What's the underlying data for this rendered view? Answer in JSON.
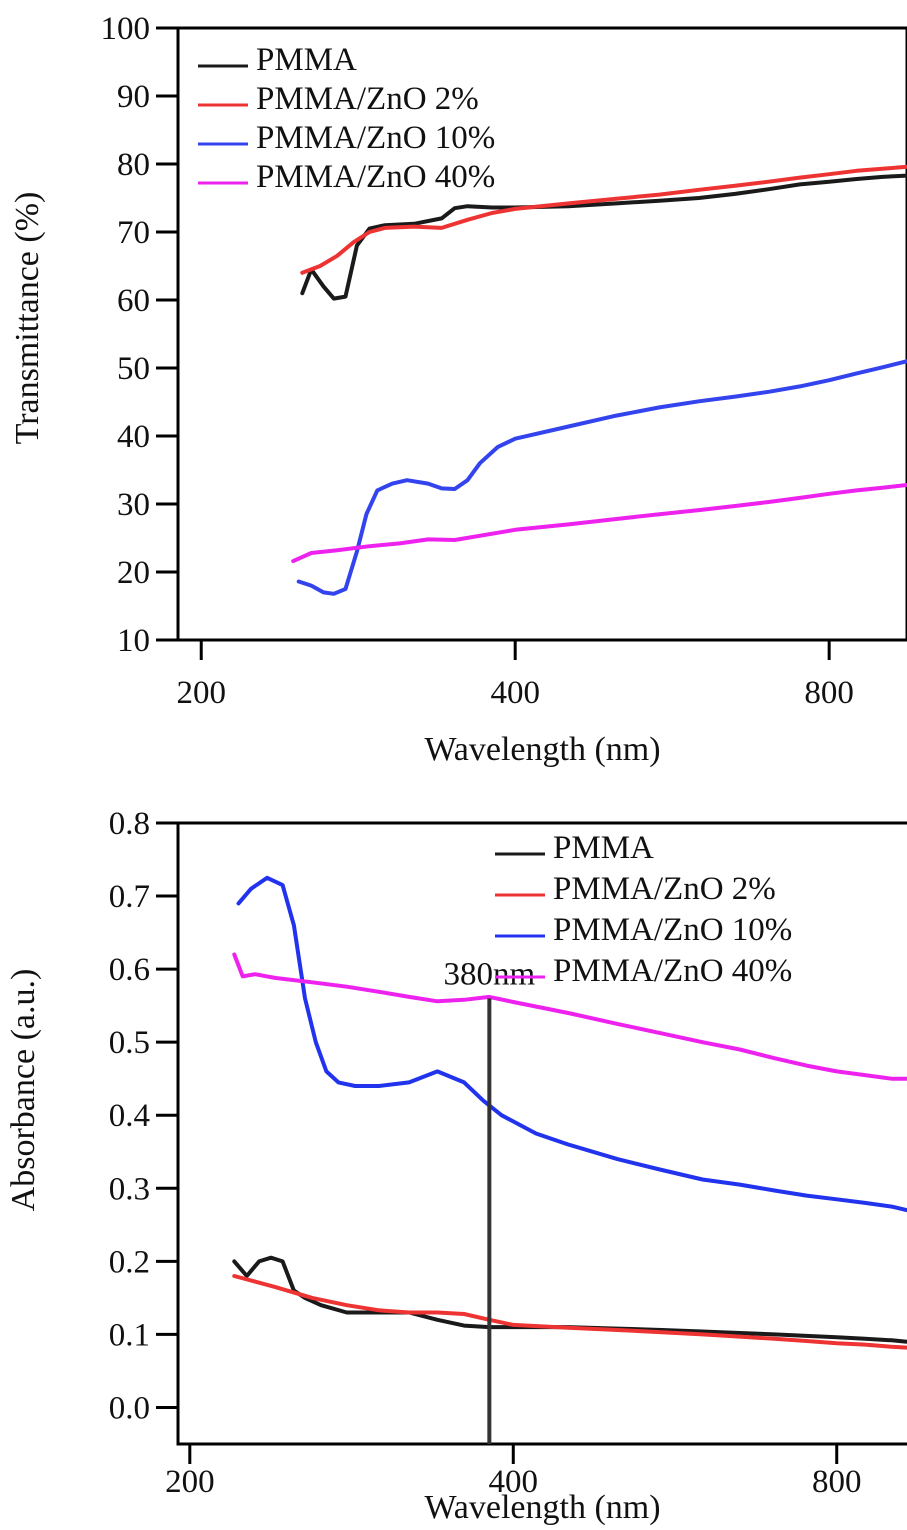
{
  "chart_data": [
    {
      "type": "line",
      "title": "",
      "xlabel": "Wavelength (nm)",
      "ylabel": "Transmittance (%)",
      "xscale": "log",
      "xlim": [
        190,
        950
      ],
      "ylim": [
        10,
        100
      ],
      "x_ticks": [
        200,
        400,
        800
      ],
      "y_ticks": [
        10,
        20,
        30,
        40,
        50,
        60,
        70,
        80,
        90,
        100
      ],
      "grid": false,
      "legend_position": "top-left",
      "series": [
        {
          "name": "PMMA",
          "color": "#1a1a1a",
          "x": [
            250,
            255,
            262,
            268,
            275,
            282,
            290,
            300,
            320,
            340,
            350,
            360,
            380,
            400,
            450,
            500,
            550,
            600,
            650,
            700,
            750,
            800,
            850,
            900,
            950
          ],
          "y": [
            61,
            64.5,
            62,
            60.2,
            60.5,
            68,
            70.5,
            71,
            71.2,
            72,
            73.5,
            73.8,
            73.6,
            73.6,
            73.8,
            74.2,
            74.6,
            75,
            75.6,
            76.3,
            77,
            77.4,
            77.8,
            78.1,
            78.3
          ]
        },
        {
          "name": "PMMA/ZnO 2%",
          "color": "#ee3333",
          "x": [
            250,
            260,
            270,
            280,
            290,
            300,
            320,
            340,
            360,
            380,
            400,
            450,
            500,
            550,
            600,
            650,
            700,
            750,
            800,
            850,
            900,
            950
          ],
          "y": [
            64,
            65,
            66.5,
            68.5,
            70,
            70.6,
            70.8,
            70.6,
            71.8,
            72.8,
            73.4,
            74.2,
            74.9,
            75.5,
            76.2,
            76.8,
            77.4,
            78,
            78.5,
            79,
            79.3,
            79.6
          ]
        },
        {
          "name": "PMMA/ZnO 10%",
          "color": "#3344ee",
          "x": [
            248,
            255,
            262,
            268,
            275,
            282,
            288,
            295,
            305,
            315,
            330,
            340,
            350,
            360,
            370,
            385,
            400,
            450,
            500,
            550,
            600,
            650,
            700,
            750,
            800,
            850,
            900,
            950
          ],
          "y": [
            18.6,
            18,
            17,
            16.8,
            17.5,
            23,
            28.5,
            32,
            33,
            33.5,
            33,
            32.3,
            32.2,
            33.5,
            36,
            38.4,
            39.6,
            41.4,
            43,
            44.2,
            45.1,
            45.8,
            46.5,
            47.3,
            48.2,
            49.2,
            50.1,
            51
          ]
        },
        {
          "name": "PMMA/ZnO 40%",
          "color": "#ee22ee",
          "x": [
            245,
            255,
            270,
            290,
            310,
            330,
            350,
            400,
            450,
            500,
            550,
            600,
            650,
            700,
            750,
            800,
            850,
            900,
            950
          ],
          "y": [
            21.6,
            22.8,
            23.2,
            23.8,
            24.2,
            24.8,
            24.7,
            26.2,
            27,
            27.8,
            28.5,
            29.1,
            29.7,
            30.3,
            30.9,
            31.5,
            32,
            32.4,
            32.8
          ]
        }
      ]
    },
    {
      "type": "line",
      "title": "",
      "xlabel": "Wavelength (nm)",
      "ylabel": "Absorbance (a.u.)",
      "xscale": "log",
      "xlim": [
        195,
        930
      ],
      "ylim": [
        -0.05,
        0.8
      ],
      "x_ticks": [
        200,
        400,
        800
      ],
      "y_ticks": [
        0.0,
        0.1,
        0.2,
        0.3,
        0.4,
        0.5,
        0.6,
        0.7,
        0.8
      ],
      "y_tick_labels": [
        "0.0",
        "0.1",
        "0.2",
        "0.3",
        "0.4",
        "0.5",
        "0.6",
        "0.7",
        "0.8"
      ],
      "grid": false,
      "legend_position": "top-right",
      "annotations": [
        {
          "text": "380nm",
          "x": 380
        }
      ],
      "series": [
        {
          "name": "PMMA",
          "color": "#1a1a1a",
          "x": [
            220,
            226,
            232,
            238,
            244,
            250,
            256,
            265,
            280,
            300,
            320,
            340,
            360,
            380,
            400,
            450,
            500,
            550,
            600,
            650,
            700,
            750,
            800,
            850,
            900,
            930
          ],
          "y": [
            0.2,
            0.18,
            0.2,
            0.205,
            0.2,
            0.16,
            0.15,
            0.14,
            0.13,
            0.13,
            0.13,
            0.12,
            0.112,
            0.11,
            0.11,
            0.11,
            0.108,
            0.106,
            0.104,
            0.102,
            0.1,
            0.098,
            0.096,
            0.094,
            0.092,
            0.09
          ]
        },
        {
          "name": "PMMA/ZnO 2%",
          "color": "#ee3333",
          "x": [
            220,
            240,
            260,
            280,
            300,
            320,
            340,
            360,
            380,
            400,
            450,
            500,
            550,
            600,
            650,
            700,
            750,
            800,
            850,
            900,
            930
          ],
          "y": [
            0.18,
            0.165,
            0.15,
            0.14,
            0.133,
            0.13,
            0.13,
            0.128,
            0.12,
            0.113,
            0.109,
            0.106,
            0.103,
            0.1,
            0.097,
            0.094,
            0.091,
            0.088,
            0.086,
            0.083,
            0.082
          ]
        },
        {
          "name": "PMMA/ZnO 10%",
          "color": "#2233ee",
          "x": [
            222,
            228,
            236,
            244,
            250,
            256,
            262,
            268,
            275,
            285,
            300,
            320,
            340,
            360,
            375,
            390,
            420,
            450,
            500,
            550,
            600,
            650,
            700,
            750,
            800,
            850,
            900,
            930
          ],
          "y": [
            0.69,
            0.71,
            0.725,
            0.715,
            0.66,
            0.56,
            0.5,
            0.46,
            0.445,
            0.44,
            0.44,
            0.445,
            0.46,
            0.445,
            0.42,
            0.4,
            0.375,
            0.36,
            0.34,
            0.325,
            0.312,
            0.305,
            0.297,
            0.29,
            0.285,
            0.28,
            0.275,
            0.27
          ]
        },
        {
          "name": "PMMA/ZnO 40%",
          "color": "#ee22ee",
          "x": [
            220,
            224,
            230,
            240,
            260,
            280,
            300,
            320,
            340,
            360,
            380,
            400,
            450,
            500,
            550,
            600,
            650,
            700,
            750,
            800,
            850,
            900,
            930
          ],
          "y": [
            0.62,
            0.59,
            0.593,
            0.588,
            0.582,
            0.576,
            0.569,
            0.562,
            0.556,
            0.558,
            0.562,
            0.555,
            0.54,
            0.525,
            0.512,
            0.5,
            0.49,
            0.478,
            0.468,
            0.46,
            0.455,
            0.45,
            0.45
          ]
        }
      ]
    }
  ]
}
